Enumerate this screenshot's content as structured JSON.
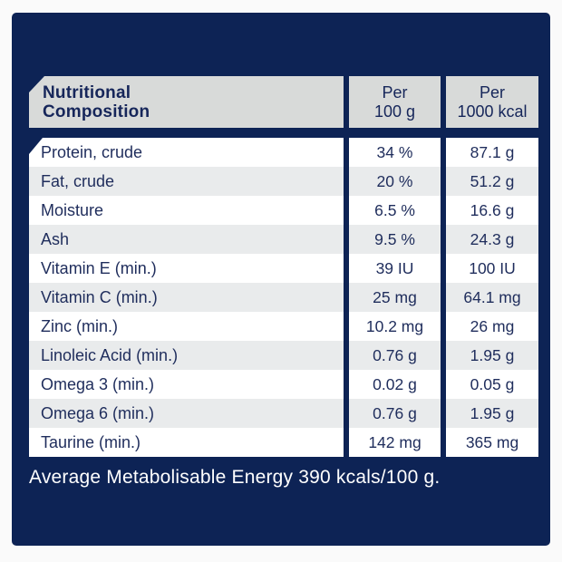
{
  "colors": {
    "card_navy": "#0d2355",
    "header_gray": "#d8dad9",
    "alt_row_gray": "#e9ebec",
    "row_white": "#ffffff",
    "text_navy": "#1f2d5c",
    "footer_text": "#ffffff",
    "page_background": "#fafafa"
  },
  "table": {
    "header": {
      "col1_line1": "Nutritional",
      "col1_line2": "Composition",
      "col2_line1": "Per",
      "col2_line2": "100 g",
      "col3_line1": "Per",
      "col3_line2": "1000 kcal"
    },
    "rows": [
      {
        "label": "Protein, crude",
        "per100": "34 %",
        "per1000": "87.1 g"
      },
      {
        "label": "Fat, crude",
        "per100": "20 %",
        "per1000": "51.2 g"
      },
      {
        "label": "Moisture",
        "per100": "6.5 %",
        "per1000": "16.6 g"
      },
      {
        "label": "Ash",
        "per100": "9.5 %",
        "per1000": "24.3 g"
      },
      {
        "label": "Vitamin E (min.)",
        "per100": "39 IU",
        "per1000": "100 IU"
      },
      {
        "label": "Vitamin C (min.)",
        "per100": "25 mg",
        "per1000": "64.1 mg"
      },
      {
        "label": "Zinc (min.)",
        "per100": "10.2 mg",
        "per1000": "26 mg"
      },
      {
        "label": "Linoleic Acid (min.)",
        "per100": "0.76 g",
        "per1000": "1.95 g"
      },
      {
        "label": "Omega 3 (min.)",
        "per100": "0.02 g",
        "per1000": "0.05 g"
      },
      {
        "label": "Omega 6 (min.)",
        "per100": "0.76 g",
        "per1000": "1.95 g"
      },
      {
        "label": "Taurine (min.)",
        "per100": "142 mg",
        "per1000": "365 mg"
      }
    ]
  },
  "footer": {
    "text": "Average Metabolisable Energy 390 kcals/100 g."
  }
}
